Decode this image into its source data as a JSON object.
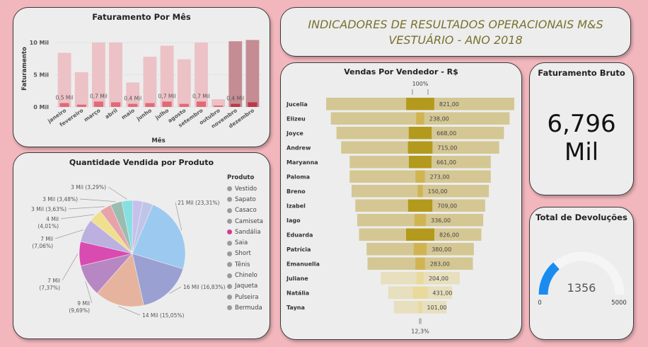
{
  "faturamento_mes": {
    "title": "Faturamento Por Mês",
    "colors": {
      "bar": "#ecc2c6",
      "bar_dark": "#c58c93",
      "inner": "#e06a78",
      "inner_dark": "#b83a4a"
    },
    "chart_data": {
      "type": "bar",
      "title": "Faturamento Por Mês",
      "xlabel": "Mês",
      "ylabel": "Faturamento",
      "ylim": [
        0,
        11
      ],
      "y_ticks": [
        "0 Mil",
        "5 Mil",
        "10 Mil"
      ],
      "categories": [
        "janeiro",
        "fevereiro",
        "março",
        "abril",
        "maio",
        "junho",
        "julho",
        "agosto",
        "setembro",
        "outubro",
        "novembro",
        "dezembro"
      ],
      "series": [
        {
          "values": [
            8.4,
            5.4,
            10.0,
            10.0,
            3.8,
            7.8,
            9.5,
            7.4,
            10.0,
            1.2,
            10.2,
            10.4
          ]
        },
        {
          "values": [
            0.5,
            0.3,
            0.7,
            0.6,
            0.4,
            0.5,
            0.7,
            0.4,
            0.7,
            0.1,
            0.4,
            0.6
          ]
        }
      ],
      "data_labels": [
        "0,5 Mil",
        "",
        "0,7 Mil",
        "",
        "0,4 Mil",
        "",
        "0,7 Mil",
        "",
        "0,7 Mil",
        "",
        "0,4 Mil",
        ""
      ]
    }
  },
  "indicadores": {
    "line1": "INDICADORES DE RESULTADOS OPERACIONAIS M&S",
    "line2": "VESTUÁRIO - ANO 2018"
  },
  "vendas_vendedor": {
    "title": "Vendas Por Vendedor - R$",
    "top_label": "100%",
    "bottom_label": "12,3%",
    "colors": {
      "outer": "#d4c793",
      "inner_dark": "#b39a1c",
      "inner_mid": "#d1b452",
      "inner_light": "#e9d99a"
    },
    "chart_data": {
      "type": "bar",
      "categories": [
        "Jucelia",
        "Elizeu",
        "Joyce",
        "Andrew",
        "Maryanna",
        "Paloma",
        "Breno",
        "Izabel",
        "Iago",
        "Eduarda",
        "Patrícia",
        "Emanuella",
        "Juliane",
        "Natália",
        "Tayna"
      ],
      "series": [
        {
          "values": [
            100,
            95,
            89,
            84,
            75,
            75,
            73,
            69,
            67,
            65,
            57,
            56,
            42,
            34,
            28
          ]
        },
        {
          "values": [
            821,
            238,
            668,
            715,
            661,
            273,
            150,
            709,
            336,
            826,
            380,
            283,
            204,
            431,
            101
          ]
        }
      ],
      "value_labels": [
        "821,00",
        "238,00",
        "668,00",
        "715,00",
        "661,00",
        "273,00",
        "150,00",
        "709,00",
        "336,00",
        "826,00",
        "380,00",
        "283,00",
        "204,00",
        "431,00",
        "101,00"
      ]
    }
  },
  "quantidade_produto": {
    "title": "Quantidade Vendida por Produto",
    "legend_title": "Produto",
    "products": [
      "Vestido",
      "Sapato",
      "Casaco",
      "Camiseta",
      "Sandália",
      "Saia",
      "Short",
      "Tênis",
      "Chinelo",
      "Jaqueta",
      "Pulseira",
      "Bermuda"
    ],
    "colors": [
      "#9cc9f0",
      "#9aa0d2",
      "#e6b49e",
      "#b787c3",
      "#d94bb0",
      "#bcb0e0",
      "#f0e08e",
      "#e8a3a8",
      "#9bbcb0",
      "#86e0e2",
      "#c7c0ee",
      "#bfc5e8"
    ],
    "chart_data": {
      "type": "pie",
      "values": [
        23.31,
        16.83,
        15.05,
        9.69,
        7.37,
        7.06,
        4.01,
        3.63,
        3.48,
        3.29,
        3.14,
        3.14
      ],
      "data_labels": [
        "21 Mil (23,31%)",
        "16 Mil (16,83%)",
        "14 Mil (15,05%)",
        "9 Mil (9,69%)",
        "7 Mil (7,37%)",
        "7 Mil (7,06%)",
        "4 Mil (4,01%)",
        "3 Mil (3,63%)",
        "3 Mil (3,48%)",
        "3 Mil (3,29%)",
        "",
        ""
      ]
    }
  },
  "faturamento_bruto": {
    "title": "Faturamento Bruto",
    "value_line1": "6,796",
    "value_line2": "Mil"
  },
  "devolucoes": {
    "title": "Total de Devoluções",
    "value": "1356",
    "min": "0",
    "max": "5000",
    "fraction": 0.2712,
    "colors": {
      "fill": "#1a8cf0",
      "track": "#f5f5f5"
    }
  }
}
